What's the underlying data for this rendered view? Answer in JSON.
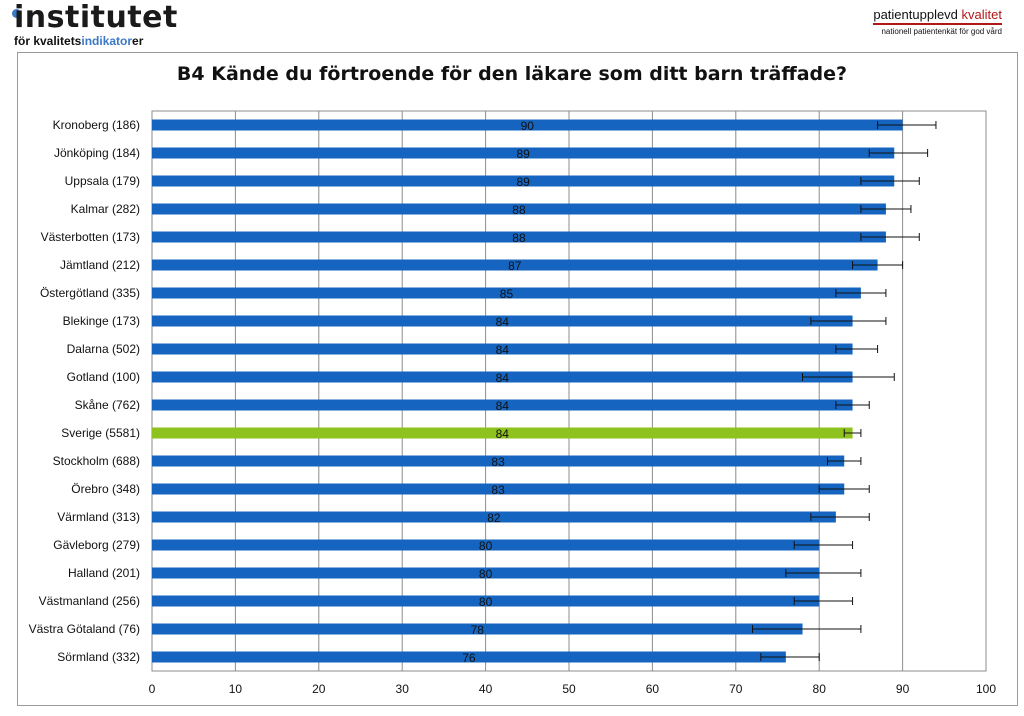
{
  "logo_left": {
    "word": "institutet",
    "tag_prefix": "för kvalitets",
    "tag_highlight": "indikator",
    "tag_suffix": "er"
  },
  "logo_right": {
    "title_prefix": "patientupplevd ",
    "title_accent": "kvalitet",
    "subtitle": "nationell patientenkät för god vård"
  },
  "chart_data": {
    "type": "bar",
    "orientation": "horizontal",
    "title": "B4 Kände du förtroende för den läkare som ditt barn träffade?",
    "xlim": [
      0,
      100
    ],
    "xticks": [
      0,
      10,
      20,
      30,
      40,
      50,
      60,
      70,
      80,
      90,
      100
    ],
    "grid": "vertical",
    "colors": {
      "default": "#1565c0",
      "highlight": "#8dc21f",
      "grid": "#8c8c8c"
    },
    "categories": [
      "Kronoberg (186)",
      "Jönköping (184)",
      "Uppsala (179)",
      "Kalmar (282)",
      "Västerbotten (173)",
      "Jämtland (212)",
      "Östergötland (335)",
      "Blekinge (173)",
      "Dalarna (502)",
      "Gotland (100)",
      "Skåne (762)",
      "Sverige (5581)",
      "Stockholm (688)",
      "Örebro (348)",
      "Värmland (313)",
      "Gävleborg (279)",
      "Halland (201)",
      "Västmanland (256)",
      "Västra Götaland (76)",
      "Sörmland (332)"
    ],
    "values": [
      90,
      89,
      89,
      88,
      88,
      87,
      85,
      84,
      84,
      84,
      84,
      84,
      83,
      83,
      82,
      80,
      80,
      80,
      78,
      76
    ],
    "value_labels": [
      "90",
      "89",
      "89",
      "88",
      "88",
      "87",
      "85",
      "84",
      "84",
      "84",
      "84",
      "84",
      "83",
      "83",
      "82",
      "80",
      "80",
      "80",
      "78",
      "76"
    ],
    "error_low": [
      87,
      86,
      85,
      85,
      85,
      84,
      82,
      79,
      82,
      78,
      82,
      83,
      81,
      80,
      79,
      77,
      76,
      77,
      72,
      73
    ],
    "error_high": [
      94,
      93,
      92,
      91,
      92,
      90,
      88,
      88,
      87,
      89,
      86,
      85,
      85,
      86,
      86,
      84,
      85,
      84,
      85,
      80
    ],
    "highlight_category": "Sverige (5581)"
  }
}
